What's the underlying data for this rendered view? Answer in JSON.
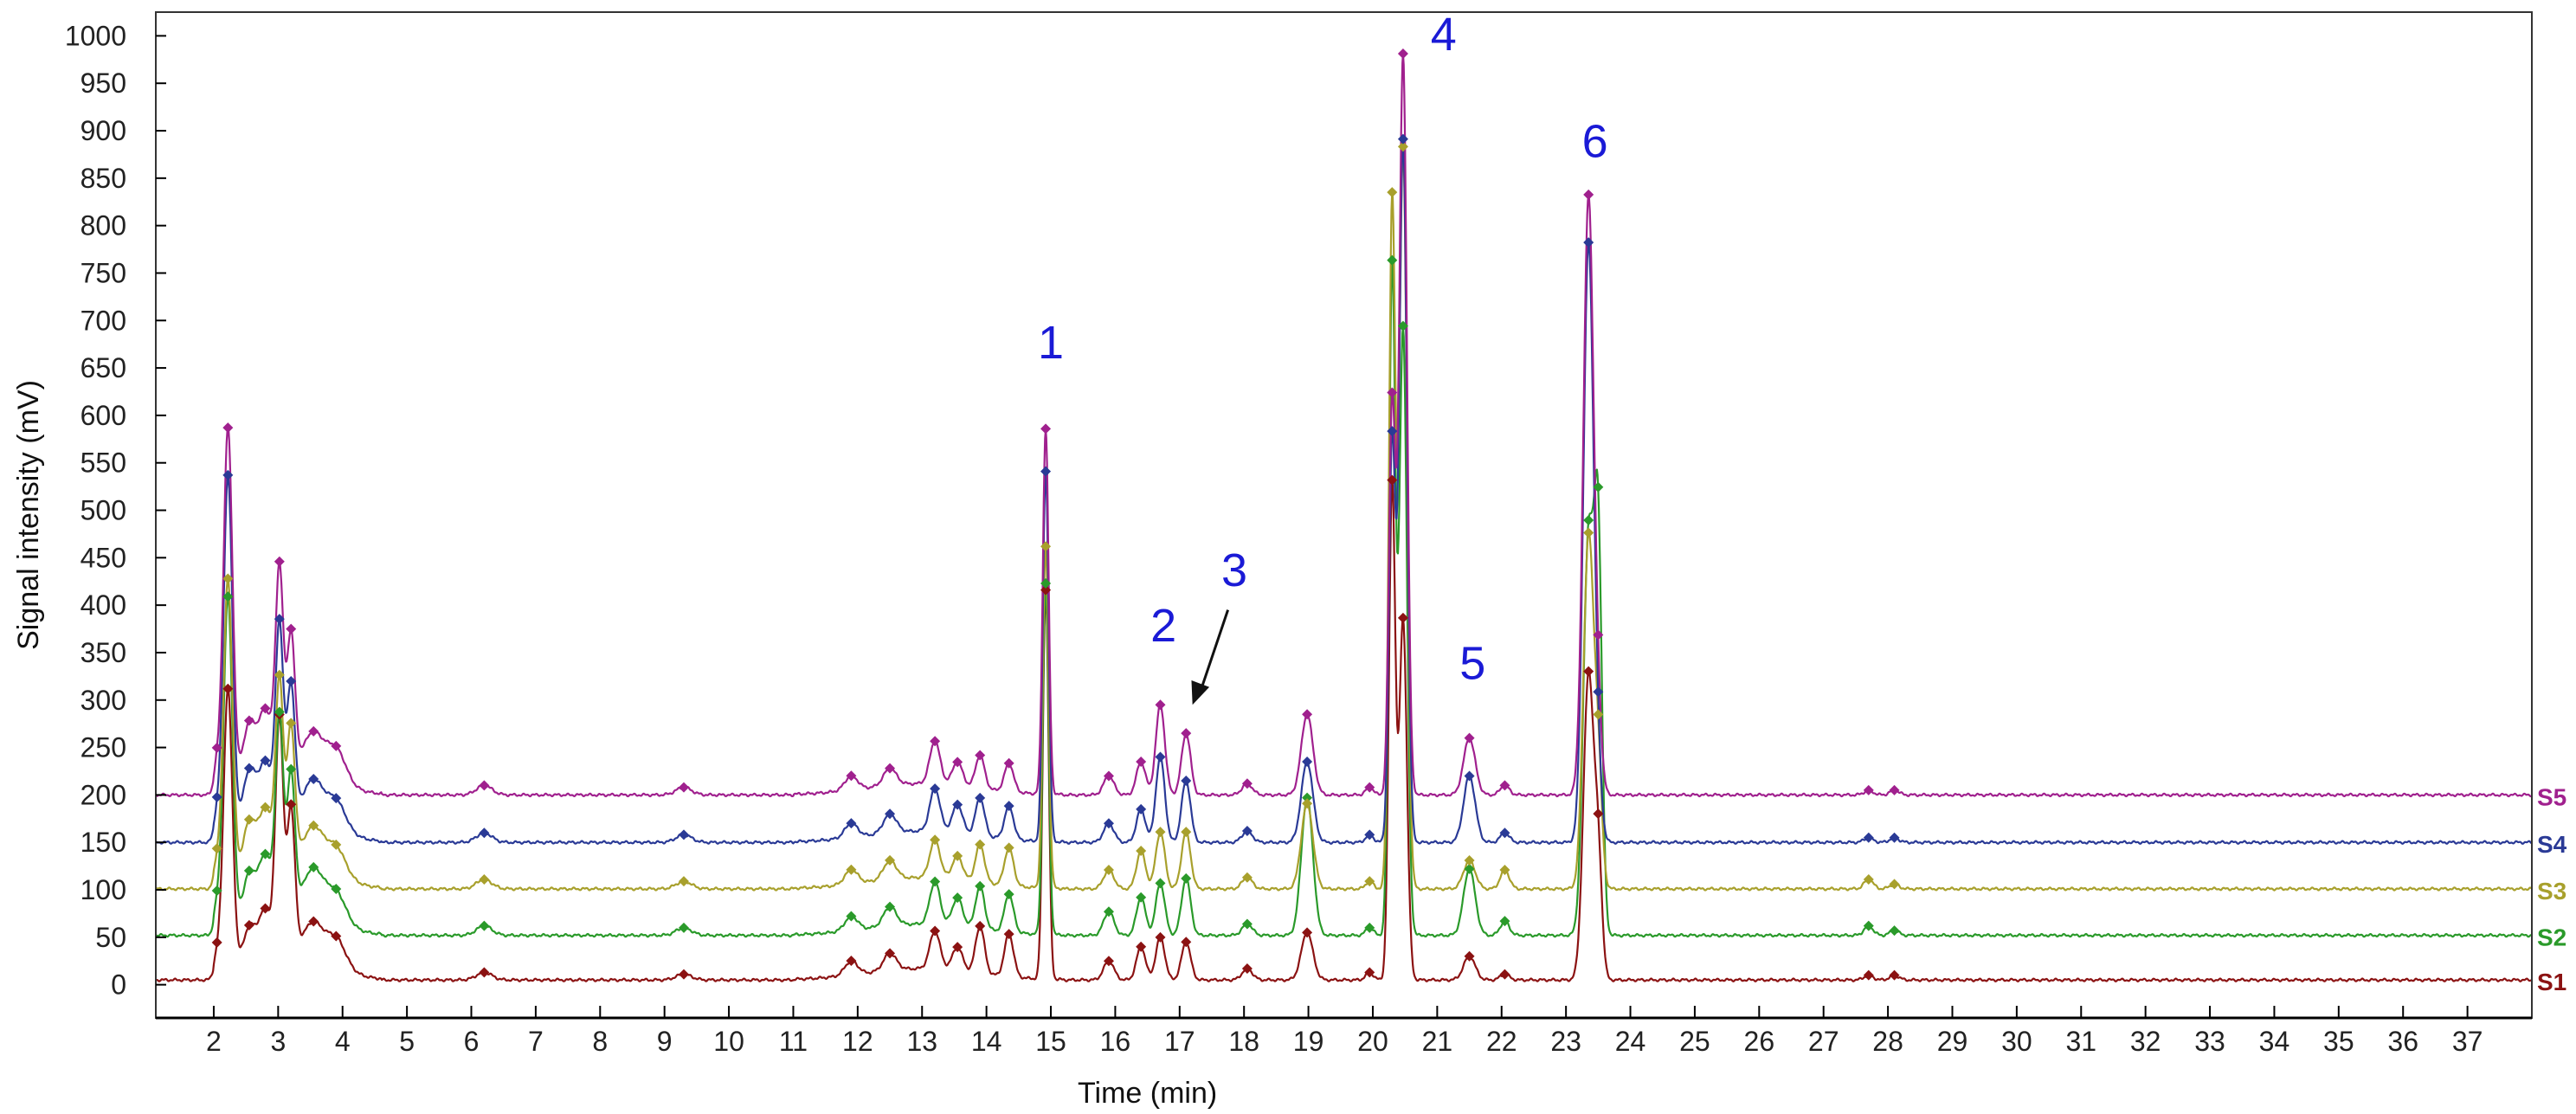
{
  "chart_data": {
    "type": "line",
    "xlabel": "Time (min)",
    "ylabel": "Signal intensity (mV)",
    "xlim": [
      1.1,
      38.0
    ],
    "ylim": [
      -35,
      1025
    ],
    "x_ticks": [
      2,
      3,
      4,
      5,
      6,
      7,
      8,
      9,
      10,
      11,
      12,
      13,
      14,
      15,
      16,
      17,
      18,
      19,
      20,
      21,
      22,
      23,
      24,
      25,
      26,
      27,
      28,
      29,
      30,
      31,
      32,
      33,
      34,
      35,
      36,
      37
    ],
    "y_ticks": [
      0,
      50,
      100,
      150,
      200,
      250,
      300,
      350,
      400,
      450,
      500,
      550,
      600,
      650,
      700,
      750,
      800,
      850,
      900,
      950,
      1000
    ],
    "grid": false,
    "peaks": [
      {
        "t": 2.05,
        "w": 0.05,
        "h": [
          20,
          25,
          22,
          24,
          26
        ]
      },
      {
        "t": 2.22,
        "w": 0.07,
        "h": [
          300,
          350,
          320,
          380,
          380
        ]
      },
      {
        "t": 2.55,
        "w": 0.1,
        "h": [
          40,
          50,
          55,
          60,
          60
        ]
      },
      {
        "t": 2.8,
        "w": 0.1,
        "h": [
          50,
          60,
          60,
          60,
          65
        ]
      },
      {
        "t": 3.02,
        "w": 0.06,
        "h": [
          245,
          200,
          190,
          200,
          210
        ]
      },
      {
        "t": 3.2,
        "w": 0.06,
        "h": [
          150,
          140,
          140,
          135,
          140
        ]
      },
      {
        "t": 3.55,
        "w": 0.15,
        "h": [
          35,
          45,
          40,
          40,
          40
        ]
      },
      {
        "t": 3.9,
        "w": 0.15,
        "h": [
          30,
          32,
          30,
          30,
          35
        ]
      },
      {
        "t": 6.2,
        "w": 0.12,
        "h": [
          8,
          10,
          10,
          10,
          10
        ]
      },
      {
        "t": 9.3,
        "w": 0.12,
        "h": [
          6,
          8,
          8,
          8,
          8
        ]
      },
      {
        "t": 11.9,
        "w": 0.1,
        "h": [
          15,
          15,
          15,
          15,
          15
        ]
      },
      {
        "t": 12.5,
        "w": 0.1,
        "h": [
          18,
          20,
          20,
          20,
          18
        ]
      },
      {
        "t": 13.2,
        "w": 0.08,
        "h": [
          40,
          45,
          40,
          45,
          45
        ]
      },
      {
        "t": 13.55,
        "w": 0.08,
        "h": [
          25,
          30,
          25,
          30,
          25
        ]
      },
      {
        "t": 13.9,
        "w": 0.07,
        "h": [
          50,
          45,
          40,
          40,
          35
        ]
      },
      {
        "t": 14.35,
        "w": 0.07,
        "h": [
          45,
          40,
          40,
          35,
          30
        ]
      },
      {
        "t": 14.92,
        "w": 0.045,
        "h": [
          410,
          370,
          360,
          390,
          385
        ]
      },
      {
        "t": 15.9,
        "w": 0.08,
        "h": [
          20,
          25,
          20,
          20,
          20
        ]
      },
      {
        "t": 16.4,
        "w": 0.07,
        "h": [
          35,
          40,
          40,
          35,
          35
        ]
      },
      {
        "t": 16.7,
        "w": 0.07,
        "h": [
          45,
          55,
          60,
          90,
          95
        ]
      },
      {
        "t": 17.1,
        "w": 0.07,
        "h": [
          40,
          60,
          60,
          65,
          65
        ]
      },
      {
        "t": 18.05,
        "w": 0.08,
        "h": [
          12,
          12,
          12,
          12,
          12
        ]
      },
      {
        "t": 18.98,
        "w": 0.09,
        "h": [
          50,
          145,
          90,
          85,
          85
        ]
      },
      {
        "t": 19.95,
        "w": 0.06,
        "h": [
          8,
          8,
          8,
          8,
          8
        ]
      },
      {
        "t": 20.3,
        "w": 0.05,
        "h": [
          520,
          700,
          720,
          420,
          410
        ]
      },
      {
        "t": 20.47,
        "w": 0.06,
        "h": [
          380,
          640,
          780,
          740,
          780
        ]
      },
      {
        "t": 21.5,
        "w": 0.09,
        "h": [
          25,
          70,
          30,
          70,
          60
        ]
      },
      {
        "t": 22.05,
        "w": 0.07,
        "h": [
          6,
          15,
          20,
          10,
          10
        ]
      },
      {
        "t": 23.35,
        "w": 0.08,
        "h": [
          320,
          420,
          370,
          630,
          630
        ]
      },
      {
        "t": 23.5,
        "w": 0.06,
        "h": [
          120,
          400,
          120,
          50,
          60
        ]
      },
      {
        "t": 27.7,
        "w": 0.07,
        "h": [
          5,
          10,
          10,
          5,
          5
        ]
      },
      {
        "t": 28.1,
        "w": 0.07,
        "h": [
          5,
          5,
          5,
          5,
          5
        ]
      }
    ],
    "series": [
      {
        "name": "S1",
        "baseline": 5,
        "color": "#8b1212"
      },
      {
        "name": "S2",
        "baseline": 52,
        "color": "#2a9a2a"
      },
      {
        "name": "S3",
        "baseline": 101,
        "color": "#a8a02c"
      },
      {
        "name": "S4",
        "baseline": 150,
        "color": "#2a3a96"
      },
      {
        "name": "S5",
        "baseline": 200,
        "color": "#a0208e"
      }
    ],
    "annotations": [
      {
        "text": "1",
        "x": 15.0,
        "y": 660
      },
      {
        "text": "2",
        "x": 16.75,
        "y": 362
      },
      {
        "text": "3",
        "x": 17.85,
        "y": 420
      },
      {
        "text": "4",
        "x": 21.1,
        "y": 985
      },
      {
        "text": "5",
        "x": 21.55,
        "y": 322
      },
      {
        "text": "6",
        "x": 23.45,
        "y": 872
      }
    ]
  }
}
